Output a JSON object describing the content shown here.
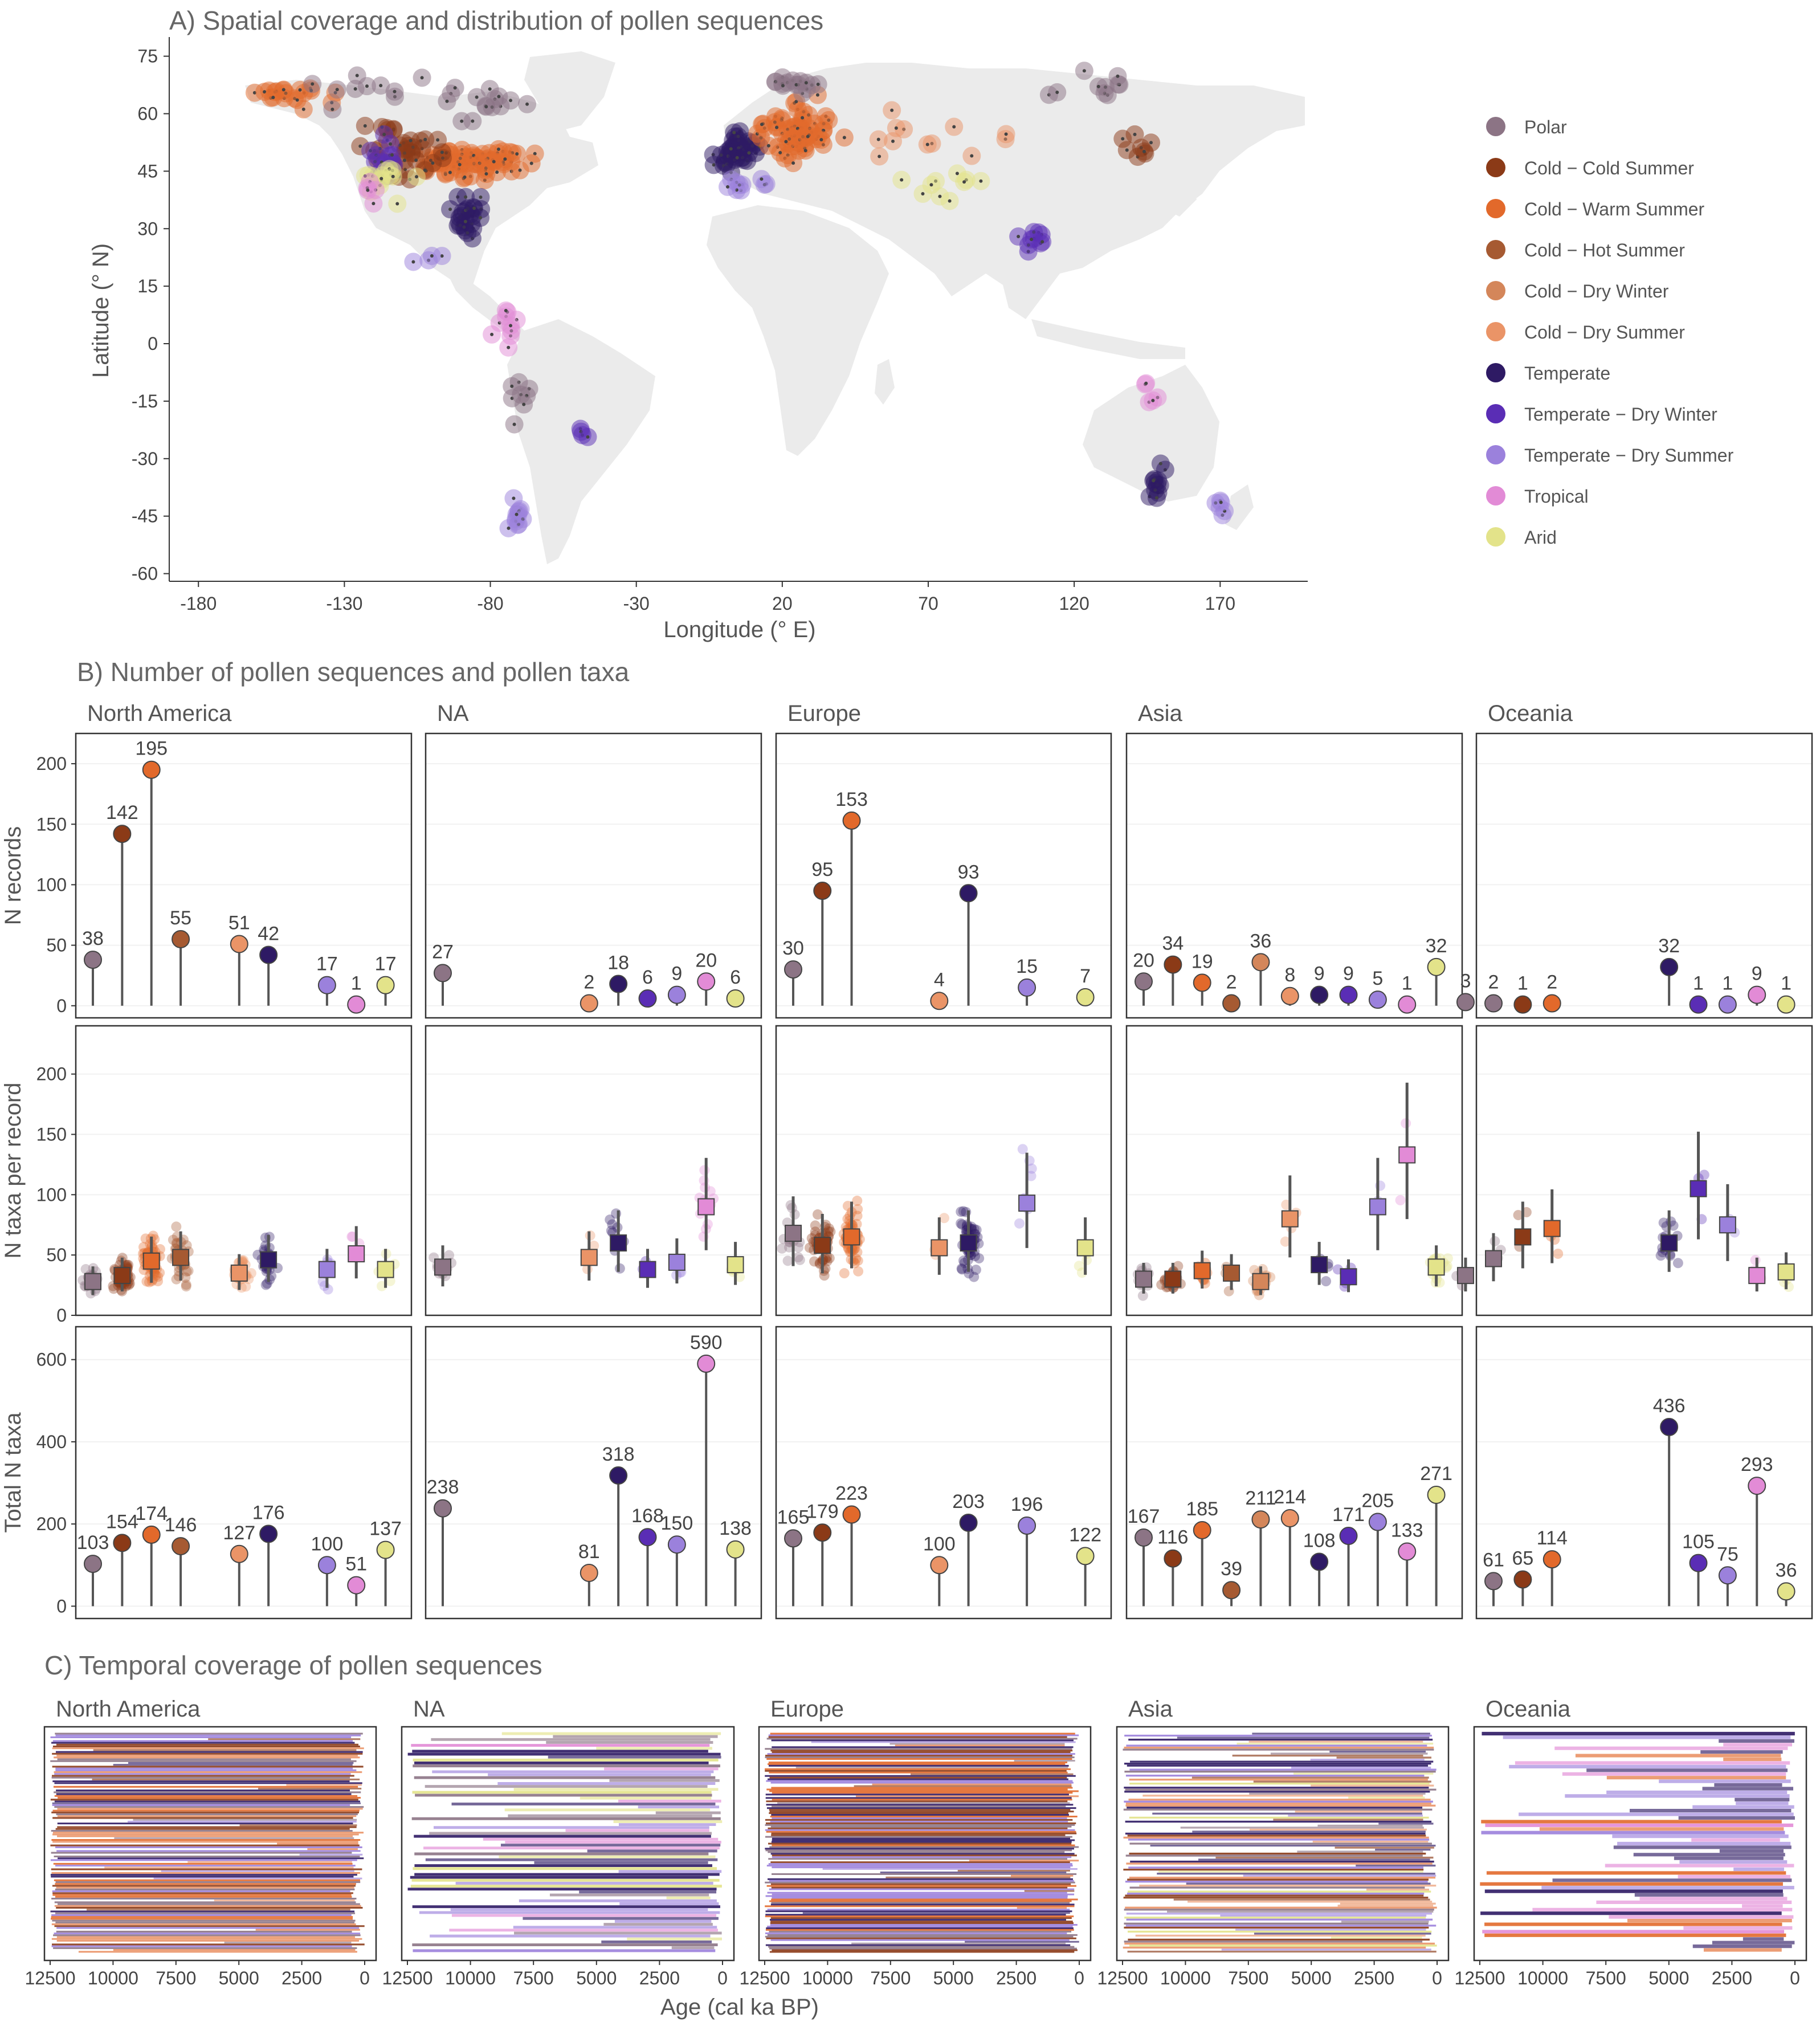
{
  "climate_colors": {
    "Polar": "#8c7485",
    "Cold - Cold Summer": "#8b3a17",
    "Cold - Warm Summer": "#e2692b",
    "Cold - Hot Summer": "#a65a32",
    "Cold - Dry Winter": "#d4865a",
    "Cold - Dry Summer": "#ea9467",
    "Temperate": "#2e1a64",
    "Temperate - Dry Winter": "#5a2db5",
    "Temperate - Dry Summer": "#9b81dc",
    "Tropical": "#e28bd6",
    "Arid": "#e3e38a"
  },
  "panel_a": {
    "title": "A) Spatial coverage and distribution of pollen sequences",
    "chart_data": {
      "type": "scatter",
      "xlabel": "Longitude (° E)",
      "ylabel": "Latitude (° N)",
      "xlim": [
        -190,
        200
      ],
      "ylim": [
        -62,
        80
      ],
      "xticks": [
        -180,
        -130,
        -80,
        -30,
        20,
        70,
        120,
        170
      ],
      "yticks": [
        75,
        60,
        45,
        30,
        15,
        0,
        -15,
        -30,
        -45,
        -60
      ],
      "legend_position": "right",
      "legend": [
        "Polar",
        "Cold − Cold Summer",
        "Cold − Warm Summer",
        "Cold − Hot Summer",
        "Cold − Dry Winter",
        "Cold − Dry Summer",
        "Temperate",
        "Temperate − Dry Winter",
        "Temperate − Dry Summer",
        "Tropical",
        "Arid"
      ],
      "clusters": [
        {
          "class": "Cold - Warm Summer",
          "lon": -150,
          "lat": 65,
          "n": 20,
          "sx": 10,
          "sy": 3
        },
        {
          "class": "Polar",
          "lon": -130,
          "lat": 68,
          "n": 10,
          "sx": 20,
          "sy": 4
        },
        {
          "class": "Cold - Warm Summer",
          "lon": -85,
          "lat": 47,
          "n": 75,
          "sx": 14,
          "sy": 3
        },
        {
          "class": "Cold - Cold Summer",
          "lon": -110,
          "lat": 50,
          "n": 40,
          "sx": 12,
          "sy": 5
        },
        {
          "class": "Temperate - Dry Winter",
          "lon": -118,
          "lat": 47,
          "n": 15,
          "sx": 5,
          "sy": 6
        },
        {
          "class": "Arid",
          "lon": -115,
          "lat": 42,
          "n": 15,
          "sx": 6,
          "sy": 4
        },
        {
          "class": "Temperate",
          "lon": -88,
          "lat": 34,
          "n": 25,
          "sx": 5,
          "sy": 5
        },
        {
          "class": "Polar",
          "lon": -90,
          "lat": 63,
          "n": 15,
          "sx": 18,
          "sy": 5
        },
        {
          "class": "Tropical",
          "lon": -122,
          "lat": 40,
          "n": 5,
          "sx": 3,
          "sy": 4
        },
        {
          "class": "Temperate - Dry Summer",
          "lon": -100,
          "lat": 22,
          "n": 4,
          "sx": 5,
          "sy": 2
        },
        {
          "class": "Temperate",
          "lon": 5,
          "lat": 50,
          "n": 45,
          "sx": 6,
          "sy": 4
        },
        {
          "class": "Cold - Warm Summer",
          "lon": 25,
          "lat": 55,
          "n": 70,
          "sx": 11,
          "sy": 6
        },
        {
          "class": "Polar",
          "lon": 25,
          "lat": 68,
          "n": 15,
          "sx": 10,
          "sy": 2
        },
        {
          "class": "Temperate - Dry Summer",
          "lon": 8,
          "lat": 41,
          "n": 10,
          "sx": 6,
          "sy": 2
        },
        {
          "class": "Cold - Dry Summer",
          "lon": 70,
          "lat": 55,
          "n": 12,
          "sx": 20,
          "sy": 6
        },
        {
          "class": "Polar",
          "lon": 130,
          "lat": 68,
          "n": 10,
          "sx": 15,
          "sy": 5
        },
        {
          "class": "Temperate - Dry Winter",
          "lon": 105,
          "lat": 28,
          "n": 10,
          "sx": 5,
          "sy": 4
        },
        {
          "class": "Arid",
          "lon": 80,
          "lat": 42,
          "n": 10,
          "sx": 12,
          "sy": 4
        },
        {
          "class": "Cold - Cold Summer",
          "lon": 140,
          "lat": 50,
          "n": 8,
          "sx": 5,
          "sy": 5
        },
        {
          "class": "Tropical",
          "lon": -75,
          "lat": 5,
          "n": 10,
          "sx": 4,
          "sy": 6
        },
        {
          "class": "Polar",
          "lon": -70,
          "lat": -15,
          "n": 8,
          "sx": 3,
          "sy": 6
        },
        {
          "class": "Temperate - Dry Summer",
          "lon": -71,
          "lat": -45,
          "n": 12,
          "sx": 2,
          "sy": 5
        },
        {
          "class": "Temperate - Dry Winter",
          "lon": -48,
          "lat": -24,
          "n": 4,
          "sx": 2,
          "sy": 2
        },
        {
          "class": "Temperate",
          "lon": 148,
          "lat": -36,
          "n": 12,
          "sx": 3,
          "sy": 4
        },
        {
          "class": "Temperate - Dry Summer",
          "lon": 170,
          "lat": -42,
          "n": 6,
          "sx": 2,
          "sy": 3
        },
        {
          "class": "Tropical",
          "lon": 145,
          "lat": -12,
          "n": 5,
          "sx": 3,
          "sy": 4
        }
      ]
    }
  },
  "panel_b": {
    "title": "B) Number of pollen sequences and pollen taxa",
    "row_labels": [
      "N records",
      "N taxa per record",
      "Total N taxa"
    ],
    "chart_data": [
      {
        "region": "North America",
        "type": "lollipop",
        "classes": [
          "Polar",
          "Cold - Cold Summer",
          "Cold - Warm Summer",
          "Cold - Hot Summer",
          "Cold - Dry Summer",
          "Temperate",
          "Temperate - Dry Summer",
          "Tropical",
          "Arid"
        ],
        "x": [
          1,
          2,
          3,
          4,
          6,
          7,
          9,
          10,
          11
        ],
        "n_records": [
          38,
          142,
          195,
          55,
          51,
          42,
          17,
          1,
          17
        ],
        "median_taxa": [
          28,
          33,
          45,
          48,
          35,
          46,
          38,
          51,
          38
        ],
        "total_taxa": [
          103,
          154,
          174,
          146,
          127,
          176,
          100,
          51,
          137
        ]
      },
      {
        "region": "NA",
        "type": "lollipop",
        "classes": [
          "Polar",
          "Cold - Dry Summer",
          "Temperate",
          "Temperate - Dry Winter",
          "Temperate - Dry Summer",
          "Tropical",
          "Arid"
        ],
        "x": [
          1,
          6,
          7,
          8,
          9,
          10,
          11
        ],
        "n_records": [
          27,
          2,
          18,
          6,
          9,
          20,
          6
        ],
        "median_taxa": [
          40,
          48,
          60,
          38,
          44,
          90,
          42
        ],
        "total_taxa": [
          238,
          81,
          318,
          168,
          150,
          590,
          138
        ]
      },
      {
        "region": "Europe",
        "type": "lollipop",
        "classes": [
          "Polar",
          "Cold - Cold Summer",
          "Cold - Warm Summer",
          "Cold - Dry Summer",
          "Temperate",
          "Temperate - Dry Summer",
          "Arid"
        ],
        "x": [
          1,
          2,
          3,
          6,
          7,
          9,
          11
        ],
        "n_records": [
          30,
          95,
          153,
          4,
          93,
          15,
          7
        ],
        "median_taxa": [
          68,
          58,
          65,
          56,
          60,
          93,
          56
        ],
        "total_taxa": [
          165,
          179,
          223,
          100,
          203,
          196,
          122
        ]
      },
      {
        "region": "Asia",
        "type": "lollipop",
        "classes": [
          "Polar",
          "Cold - Cold Summer",
          "Cold - Warm Summer",
          "Cold - Hot Summer",
          "Cold - Dry Winter",
          "Cold - Dry Summer",
          "Temperate",
          "Temperate - Dry Winter",
          "Temperate - Dry Summer",
          "Tropical",
          "Arid",
          "Polar"
        ],
        "x": [
          1,
          2,
          3,
          4,
          5,
          6,
          7,
          8,
          9,
          10,
          11,
          12
        ],
        "n_records": [
          20,
          34,
          19,
          2,
          36,
          8,
          9,
          9,
          5,
          1,
          32,
          3
        ],
        "median_taxa": [
          30,
          30,
          37,
          35,
          28,
          80,
          42,
          32,
          90,
          133,
          40,
          33
        ],
        "total_taxa": [
          167,
          116,
          185,
          39,
          211,
          214,
          108,
          171,
          205,
          133,
          271,
          null
        ]
      },
      {
        "region": "Oceania",
        "type": "lollipop",
        "classes": [
          "Polar",
          "Cold - Cold Summer",
          "Cold - Warm Summer",
          "Temperate",
          "Temperate - Dry Winter",
          "Temperate - Dry Summer",
          "Tropical",
          "Arid"
        ],
        "x": [
          1,
          2,
          3,
          7,
          8,
          9,
          10,
          11
        ],
        "n_records": [
          2,
          1,
          2,
          32,
          1,
          1,
          9,
          1
        ],
        "median_taxa": [
          47,
          65,
          72,
          60,
          105,
          75,
          33,
          36
        ],
        "total_taxa": [
          61,
          65,
          114,
          436,
          105,
          75,
          293,
          36
        ]
      }
    ],
    "axis": {
      "n_records_ylim": [
        -10,
        225
      ],
      "n_records_ticks": [
        0,
        50,
        100,
        150,
        200
      ],
      "taxa_ylim": [
        0,
        240
      ],
      "taxa_ticks": [
        0,
        50,
        100,
        150,
        200
      ],
      "total_ylim": [
        -30,
        680
      ],
      "total_ticks": [
        0,
        200,
        400,
        600
      ]
    }
  },
  "panel_c": {
    "title": "C) Temporal coverage of pollen sequences",
    "xlabel": "Age (cal ka BP)",
    "xticks": [
      12500,
      10000,
      7500,
      5000,
      2500,
      0
    ],
    "chart_data": {
      "type": "bar",
      "orientation": "horizontal",
      "x_reversed": true,
      "panels": [
        {
          "region": "North America",
          "n_lines": 120,
          "classes": [
            "Cold - Warm Summer",
            "Cold - Cold Summer",
            "Temperate",
            "Cold - Dry Summer",
            "Polar",
            "Temperate - Dry Summer"
          ],
          "full_coverage": 0.8
        },
        {
          "region": "NA",
          "n_lines": 75,
          "classes": [
            "Temperate - Dry Summer",
            "Polar",
            "Tropical",
            "Arid",
            "Temperate"
          ],
          "full_coverage": 0.35
        },
        {
          "region": "Europe",
          "n_lines": 130,
          "classes": [
            "Temperate",
            "Cold - Warm Summer",
            "Cold - Cold Summer",
            "Temperate - Dry Summer",
            "Polar"
          ],
          "full_coverage": 0.8
        },
        {
          "region": "Asia",
          "n_lines": 110,
          "classes": [
            "Cold - Dry Summer",
            "Polar",
            "Cold - Cold Summer",
            "Arid",
            "Temperate - Dry Summer",
            "Temperate"
          ],
          "full_coverage": 0.45
        },
        {
          "region": "Oceania",
          "n_lines": 60,
          "classes": [
            "Temperate - Dry Summer",
            "Temperate",
            "Cold - Warm Summer",
            "Tropical"
          ],
          "full_coverage": 0.3
        }
      ]
    }
  }
}
